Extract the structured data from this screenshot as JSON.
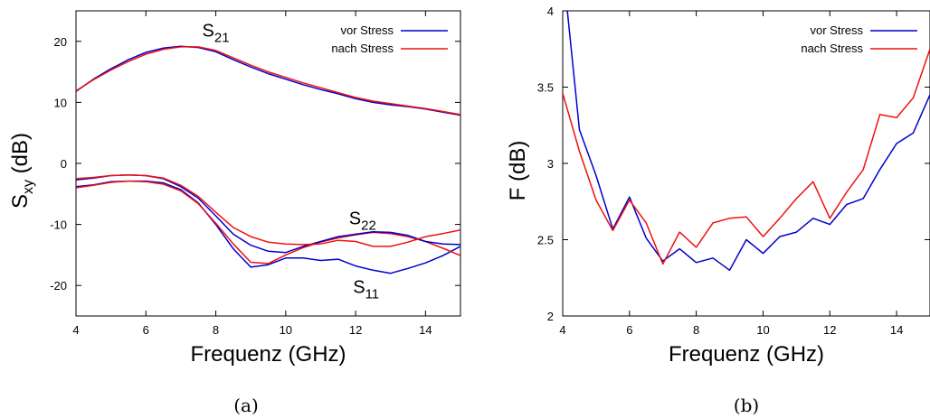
{
  "chart_data": [
    {
      "type": "line",
      "panel": "a",
      "caption": "(a)",
      "xlabel": "Frequenz (GHz)",
      "ylabel": "S",
      "ylabel_sub": "xy",
      "ylabel_unit": " (dB)",
      "xlim": [
        4,
        15
      ],
      "ylim": [
        -25,
        25
      ],
      "xticks": [
        4,
        6,
        8,
        10,
        12,
        14
      ],
      "yticks": [
        -20,
        -10,
        0,
        10,
        20
      ],
      "legend_position": "top-right",
      "legend": [
        {
          "name": "vor Stress",
          "color": "#0000cc"
        },
        {
          "name": "nach Stress",
          "color": "#ee1111"
        }
      ],
      "annotations": [
        {
          "text": "S",
          "sub": "21",
          "x": 8.0,
          "y": 20.8
        },
        {
          "text": "S",
          "sub": "22",
          "x": 12.2,
          "y": -10.0
        },
        {
          "text": "S",
          "sub": "11",
          "x": 12.3,
          "y": -21.2
        }
      ],
      "series": [
        {
          "group": "S21",
          "color": "#0000cc",
          "x": [
            4,
            4.5,
            5,
            5.5,
            6,
            6.5,
            7,
            7.5,
            8,
            8.5,
            9,
            9.5,
            10,
            10.5,
            11,
            11.5,
            12,
            12.5,
            13,
            13.5,
            14,
            14.5,
            15
          ],
          "y": [
            11.8,
            13.8,
            15.5,
            17.0,
            18.2,
            18.9,
            19.2,
            19.0,
            18.3,
            17.0,
            15.8,
            14.7,
            13.8,
            12.9,
            12.1,
            11.4,
            10.6,
            10.0,
            9.6,
            9.3,
            8.9,
            8.4,
            7.9
          ]
        },
        {
          "group": "S21",
          "color": "#ee1111",
          "x": [
            4,
            4.5,
            5,
            5.5,
            6,
            6.5,
            7,
            7.5,
            8,
            8.5,
            9,
            9.5,
            10,
            10.5,
            11,
            11.5,
            12,
            12.5,
            13,
            13.5,
            14,
            14.5,
            15
          ],
          "y": [
            11.9,
            13.7,
            15.3,
            16.7,
            17.9,
            18.7,
            19.1,
            19.1,
            18.5,
            17.3,
            16.1,
            15.0,
            14.1,
            13.2,
            12.4,
            11.6,
            10.8,
            10.2,
            9.8,
            9.4,
            9.0,
            8.5,
            8.0
          ]
        },
        {
          "group": "S11",
          "color": "#0000cc",
          "x": [
            4,
            4.5,
            5,
            5.5,
            6,
            6.5,
            7,
            7.5,
            8,
            8.5,
            9,
            9.5,
            10,
            10.5,
            11,
            11.5,
            12,
            12.5,
            13,
            13.5,
            14,
            14.5,
            15
          ],
          "y": [
            -3.8,
            -3.5,
            -3.0,
            -2.9,
            -2.9,
            -3.2,
            -4.3,
            -6.5,
            -10.0,
            -14.0,
            -17.0,
            -16.6,
            -15.5,
            -15.5,
            -15.9,
            -15.7,
            -16.8,
            -17.5,
            -18.0,
            -17.2,
            -16.3,
            -15.1,
            -13.6
          ]
        },
        {
          "group": "S11",
          "color": "#ee1111",
          "x": [
            4,
            4.5,
            5,
            5.5,
            6,
            6.5,
            7,
            7.5,
            8,
            8.5,
            9,
            9.5,
            10,
            10.5,
            11,
            11.5,
            12,
            12.5,
            13,
            13.5,
            14,
            14.5,
            15
          ],
          "y": [
            -4.0,
            -3.6,
            -3.1,
            -2.9,
            -3.0,
            -3.4,
            -4.5,
            -6.6,
            -9.8,
            -13.2,
            -16.2,
            -16.4,
            -15.0,
            -13.8,
            -12.9,
            -12.2,
            -11.7,
            -11.3,
            -11.5,
            -12.0,
            -12.8,
            -13.9,
            -15.1
          ]
        },
        {
          "group": "S22",
          "color": "#0000cc",
          "x": [
            4,
            4.5,
            5,
            5.5,
            6,
            6.5,
            7,
            7.5,
            8,
            8.5,
            9,
            9.5,
            10,
            10.5,
            11,
            11.5,
            12,
            12.5,
            13,
            13.5,
            14,
            14.5,
            15
          ],
          "y": [
            -2.7,
            -2.4,
            -2.0,
            -1.9,
            -2.0,
            -2.5,
            -3.8,
            -5.7,
            -8.6,
            -11.6,
            -13.4,
            -14.4,
            -14.6,
            -13.6,
            -12.8,
            -12.0,
            -11.6,
            -11.2,
            -11.3,
            -11.8,
            -12.8,
            -13.2,
            -13.3
          ]
        },
        {
          "group": "S22",
          "color": "#ee1111",
          "x": [
            4,
            4.5,
            5,
            5.5,
            6,
            6.5,
            7,
            7.5,
            8,
            8.5,
            9,
            9.5,
            10,
            10.5,
            11,
            11.5,
            12,
            12.5,
            13,
            13.5,
            14,
            14.5,
            15
          ],
          "y": [
            -2.5,
            -2.3,
            -2.0,
            -1.9,
            -2.0,
            -2.4,
            -3.6,
            -5.4,
            -8.0,
            -10.5,
            -12.0,
            -12.9,
            -13.2,
            -13.3,
            -13.2,
            -12.6,
            -12.8,
            -13.6,
            -13.6,
            -12.9,
            -12.0,
            -11.5,
            -10.9
          ]
        }
      ]
    },
    {
      "type": "line",
      "panel": "b",
      "caption": "(b)",
      "xlabel": "Frequenz (GHz)",
      "ylabel": "F (dB)",
      "xlim": [
        4,
        15
      ],
      "ylim": [
        2,
        4
      ],
      "xticks": [
        4,
        6,
        8,
        10,
        12,
        14
      ],
      "yticks": [
        2,
        2.5,
        3,
        3.5,
        4
      ],
      "legend_position": "top-right",
      "legend": [
        {
          "name": "vor Stress",
          "color": "#0000cc"
        },
        {
          "name": "nach Stress",
          "color": "#ee1111"
        }
      ],
      "series": [
        {
          "color": "#0000cc",
          "x": [
            4,
            4.5,
            5,
            5.5,
            6,
            6.5,
            7,
            7.5,
            8,
            8.5,
            9,
            9.5,
            10,
            10.5,
            11,
            11.5,
            12,
            12.5,
            13,
            13.5,
            14,
            14.5,
            15
          ],
          "y": [
            4.3,
            3.22,
            2.92,
            2.57,
            2.78,
            2.51,
            2.36,
            2.44,
            2.35,
            2.38,
            2.3,
            2.5,
            2.41,
            2.52,
            2.55,
            2.64,
            2.6,
            2.73,
            2.77,
            2.96,
            3.13,
            3.2,
            3.45
          ]
        },
        {
          "color": "#ee1111",
          "x": [
            4,
            4.5,
            5,
            5.5,
            6,
            6.5,
            7,
            7.5,
            8,
            8.5,
            9,
            9.5,
            10,
            10.5,
            11,
            11.5,
            12,
            12.5,
            13,
            13.5,
            14,
            14.5,
            15
          ],
          "y": [
            3.46,
            3.08,
            2.76,
            2.56,
            2.76,
            2.61,
            2.34,
            2.55,
            2.45,
            2.61,
            2.64,
            2.65,
            2.52,
            2.64,
            2.77,
            2.88,
            2.64,
            2.81,
            2.96,
            3.32,
            3.3,
            3.43,
            3.75
          ]
        }
      ]
    }
  ]
}
